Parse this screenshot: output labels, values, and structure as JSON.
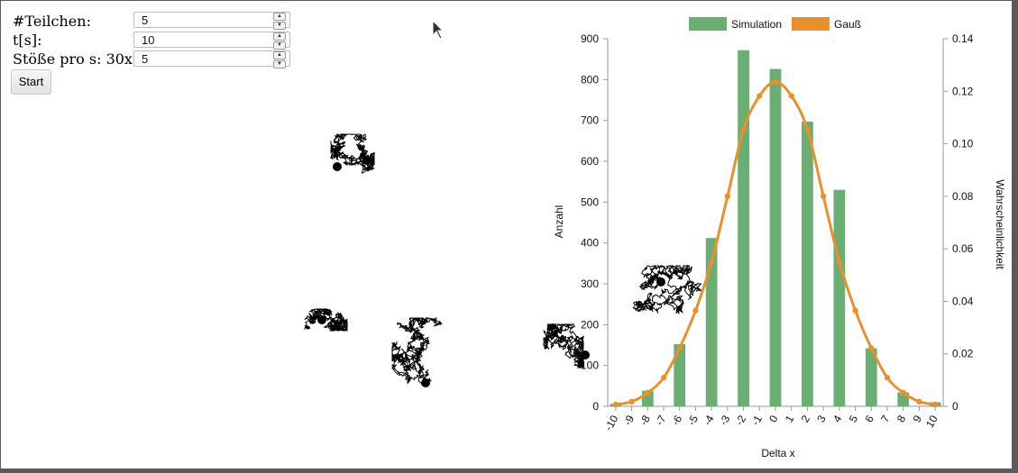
{
  "controls": {
    "particles": {
      "label": "#Teilchen:",
      "value": "5"
    },
    "time": {
      "label": "t[s]:",
      "value": "10"
    },
    "collisions": {
      "label": "Stöße pro s: 30x",
      "value": "5"
    },
    "start_label": "Start"
  },
  "chart_data": {
    "type": "bar",
    "xlabel": "Delta x",
    "ylabel": "Anzahl",
    "y2label": "Wahrscheinlichkeit",
    "legend_position": "top",
    "categories": [
      "-10",
      "-9",
      "-8",
      "-7",
      "-6",
      "-5",
      "-4",
      "-3",
      "-2",
      "-1",
      "0",
      "1",
      "2",
      "3",
      "4",
      "5",
      "6",
      "7",
      "8",
      "9",
      "10"
    ],
    "y_ticks": [
      "0",
      "100",
      "200",
      "300",
      "400",
      "500",
      "600",
      "700",
      "800",
      "900"
    ],
    "ylim": [
      0,
      900
    ],
    "y2_ticks": [
      "0",
      "0.02",
      "0.04",
      "0.06",
      "0.08",
      "0.10",
      "0.12",
      "0.14"
    ],
    "y2lim": [
      0,
      0.14
    ],
    "series": [
      {
        "name": "Simulation",
        "type": "bar",
        "color": "#6aae74",
        "values": [
          6,
          0,
          38,
          0,
          152,
          0,
          412,
          0,
          872,
          0,
          826,
          0,
          697,
          0,
          530,
          0,
          142,
          0,
          34,
          0,
          10
        ]
      },
      {
        "name": "Gauß",
        "type": "line",
        "color": "#e9902d",
        "values": [
          0.0007,
          0.0018,
          0.0052,
          0.0109,
          0.0222,
          0.0365,
          0.055,
          0.08,
          0.1055,
          0.1182,
          0.1236,
          0.1182,
          0.1055,
          0.08,
          0.055,
          0.0365,
          0.0222,
          0.0109,
          0.0052,
          0.0018,
          0.0007
        ]
      }
    ]
  }
}
